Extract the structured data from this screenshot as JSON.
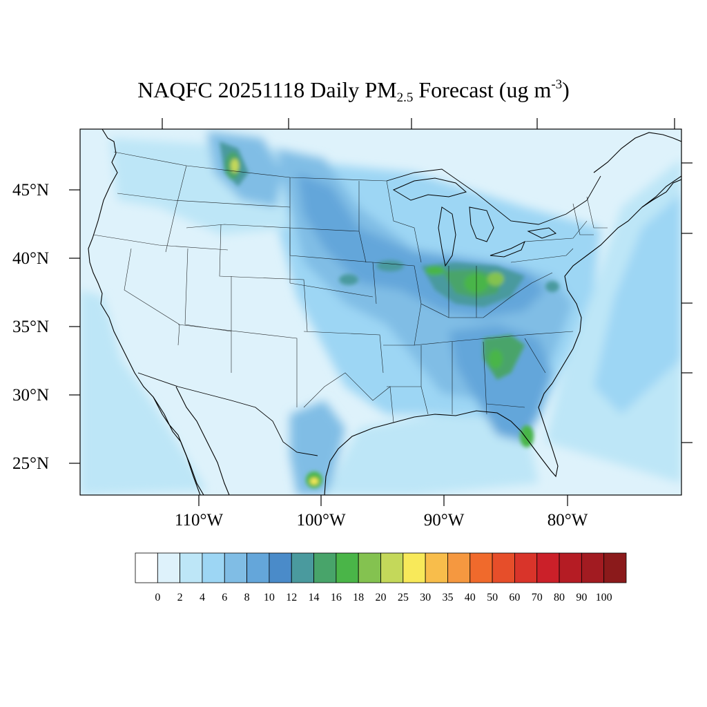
{
  "title": {
    "prefix": "NAQFC 20251118 Daily PM",
    "subscript": "2.5",
    "middle": " Forecast (ug m",
    "superscript": "-3",
    "suffix": ")"
  },
  "axes": {
    "lat_labels": [
      "45°N",
      "40°N",
      "35°N",
      "30°N",
      "25°N"
    ],
    "lon_labels": [
      "110°W",
      "100°W",
      "90°W",
      "80°W"
    ]
  },
  "colorbar": {
    "labels": [
      "0",
      "2",
      "4",
      "6",
      "8",
      "10",
      "12",
      "14",
      "16",
      "18",
      "20",
      "25",
      "30",
      "35",
      "40",
      "50",
      "60",
      "70",
      "80",
      "90",
      "100"
    ],
    "colors": [
      "#ffffff",
      "#def2fb",
      "#bde6f7",
      "#9dd6f4",
      "#80bde5",
      "#64a6da",
      "#4a8bc9",
      "#4a9a9e",
      "#48a46a",
      "#4ab548",
      "#84c250",
      "#c4d85a",
      "#f8e95a",
      "#f8bd4b",
      "#f59840",
      "#f06a2c",
      "#e64e2a",
      "#d9342a",
      "#cb2029",
      "#b51c24",
      "#a21b21",
      "#8b1a1b"
    ]
  },
  "regions": {
    "ocean_background": "#def2fb",
    "land_low": "#bde6f7",
    "moderate": "#80bde5",
    "elevated": "#64a6da",
    "higher": "#4a9a9e",
    "hotspot_green": "#4ab548",
    "hotspot_lightgreen": "#84c250",
    "hotspot_yellow": "#c4d85a",
    "border_color": "#000000"
  }
}
